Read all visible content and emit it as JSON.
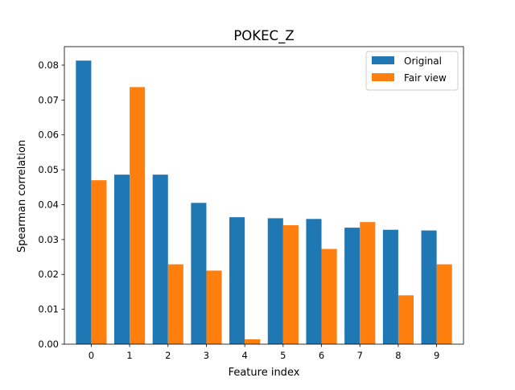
{
  "chart_data": {
    "type": "bar",
    "title": "POKEC_Z",
    "xlabel": "Feature index",
    "ylabel": "Spearman correlation",
    "categories": [
      "0",
      "1",
      "2",
      "3",
      "4",
      "5",
      "6",
      "7",
      "8",
      "9"
    ],
    "series": [
      {
        "name": "Original",
        "color": "#1f77b4",
        "values": [
          0.0813,
          0.0486,
          0.0486,
          0.0405,
          0.0364,
          0.0361,
          0.0359,
          0.0334,
          0.0328,
          0.0326
        ]
      },
      {
        "name": "Fair view",
        "color": "#ff7f0e",
        "values": [
          0.047,
          0.0737,
          0.0229,
          0.0211,
          0.0014,
          0.0341,
          0.0273,
          0.035,
          0.014,
          0.0229
        ]
      }
    ],
    "ylim": [
      0,
      0.0853
    ],
    "yticks": [
      "0.00",
      "0.01",
      "0.02",
      "0.03",
      "0.04",
      "0.05",
      "0.06",
      "0.07",
      "0.08"
    ],
    "grid": false,
    "legend_position": "top-right"
  }
}
